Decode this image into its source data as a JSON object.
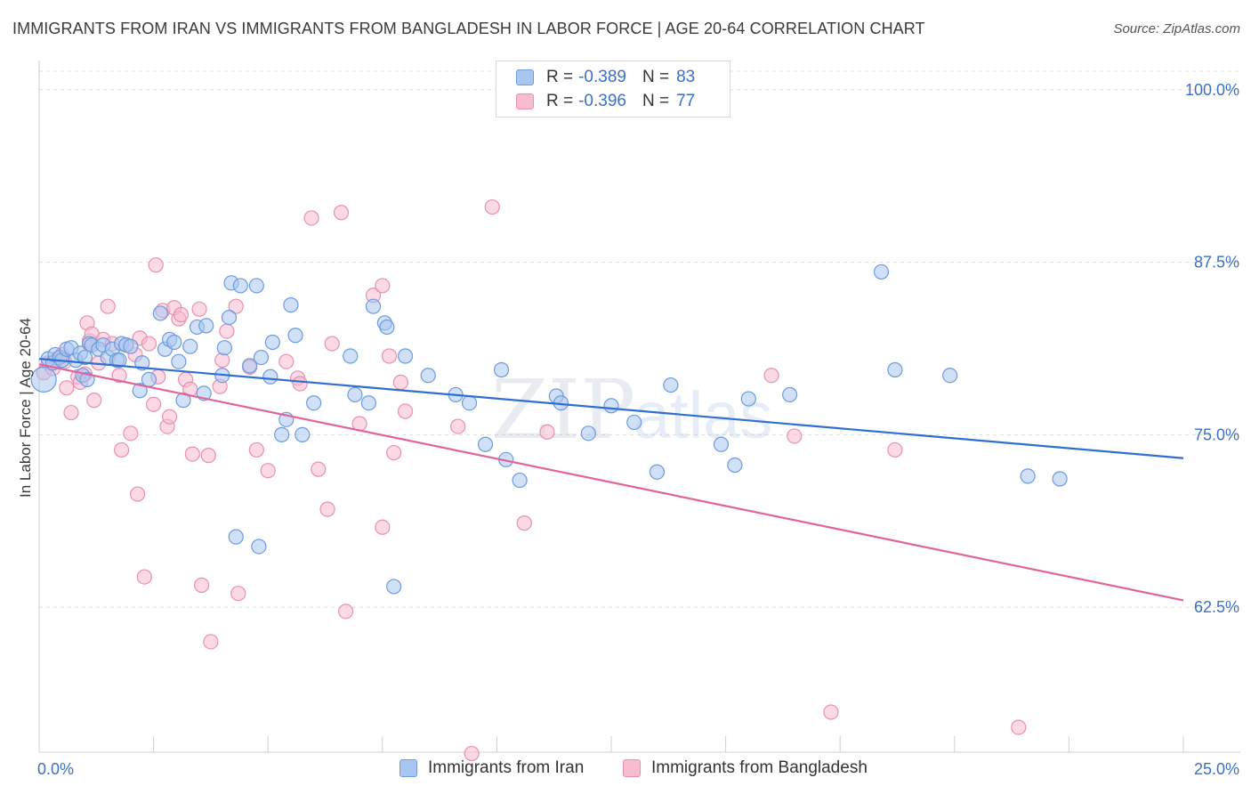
{
  "header": {
    "title": "IMMIGRANTS FROM IRAN VS IMMIGRANTS FROM BANGLADESH IN LABOR FORCE | AGE 20-64 CORRELATION CHART",
    "source": "Source: ZipAtlas.com"
  },
  "watermark": {
    "part1": "ZIP",
    "part2": "atlas"
  },
  "legend": {
    "iran": {
      "r_label": "R =",
      "r_value": "-0.389",
      "n_label": "N =",
      "n_value": "83"
    },
    "bangladesh": {
      "r_label": "R =",
      "r_value": "-0.396",
      "n_label": "N =",
      "n_value": "77"
    }
  },
  "bottom_legend": {
    "iran": "Immigrants from Iran",
    "bangladesh": "Immigrants from Bangladesh"
  },
  "colors": {
    "iran_fill": "#a9c6f0",
    "iran_stroke": "#6c9be0",
    "iran_line": "#2f6fd0",
    "bang_fill": "#f7bcd0",
    "bang_stroke": "#ea8fae",
    "bang_line": "#e0649a",
    "tick_color": "#3b6fc8",
    "grid": "#dddddd"
  },
  "chart_data": {
    "type": "scatter",
    "title": "IMMIGRANTS FROM IRAN VS IMMIGRANTS FROM BANGLADESH IN LABOR FORCE | AGE 20-64 CORRELATION CHART",
    "xlabel": "",
    "ylabel": "In Labor Force | Age 20-64",
    "xlim": [
      0,
      25
    ],
    "ylim": [
      52,
      102.5
    ],
    "x_tick_labels": [
      "0.0%",
      "25.0%"
    ],
    "y_ticks": [
      100,
      87.5,
      75,
      62.5
    ],
    "y_tick_labels": [
      "100.0%",
      "87.5%",
      "75.0%",
      "62.5%"
    ],
    "grid": true,
    "legend_placement": "top-center",
    "series": [
      {
        "name": "Immigrants from Iran",
        "trend": {
          "x": [
            0,
            25
          ],
          "y": [
            80.5,
            73.3
          ]
        },
        "points": [
          [
            0.1,
            79.0
          ],
          [
            0.2,
            80.5
          ],
          [
            0.3,
            80.2
          ],
          [
            0.35,
            80.8
          ],
          [
            0.45,
            80.6
          ],
          [
            0.5,
            80.4
          ],
          [
            0.6,
            81.2
          ],
          [
            0.7,
            81.3
          ],
          [
            0.8,
            80.4
          ],
          [
            0.9,
            80.9
          ],
          [
            0.95,
            79.3
          ],
          [
            1.0,
            80.6
          ],
          [
            1.05,
            79.0
          ],
          [
            1.1,
            81.6
          ],
          [
            1.15,
            81.5
          ],
          [
            1.3,
            81.2
          ],
          [
            1.4,
            81.5
          ],
          [
            1.5,
            80.6
          ],
          [
            1.6,
            81.2
          ],
          [
            1.7,
            80.4
          ],
          [
            1.75,
            80.4
          ],
          [
            1.8,
            81.6
          ],
          [
            1.9,
            81.5
          ],
          [
            2.0,
            81.4
          ],
          [
            2.2,
            78.2
          ],
          [
            2.25,
            80.2
          ],
          [
            2.4,
            79.0
          ],
          [
            2.65,
            83.8
          ],
          [
            2.75,
            81.2
          ],
          [
            2.85,
            81.9
          ],
          [
            2.95,
            81.7
          ],
          [
            3.05,
            80.3
          ],
          [
            3.15,
            77.5
          ],
          [
            3.3,
            81.4
          ],
          [
            3.45,
            82.8
          ],
          [
            3.6,
            78.0
          ],
          [
            3.65,
            82.9
          ],
          [
            4.0,
            79.3
          ],
          [
            4.05,
            81.3
          ],
          [
            4.15,
            83.5
          ],
          [
            4.2,
            86.0
          ],
          [
            4.4,
            85.8
          ],
          [
            4.3,
            67.6
          ],
          [
            4.6,
            80.0
          ],
          [
            4.75,
            85.8
          ],
          [
            4.85,
            80.6
          ],
          [
            4.8,
            66.9
          ],
          [
            5.05,
            79.2
          ],
          [
            5.1,
            81.7
          ],
          [
            5.3,
            75.0
          ],
          [
            5.5,
            84.4
          ],
          [
            5.4,
            76.1
          ],
          [
            5.6,
            82.2
          ],
          [
            5.75,
            75.0
          ],
          [
            6.0,
            77.3
          ],
          [
            6.8,
            80.7
          ],
          [
            6.9,
            77.9
          ],
          [
            7.2,
            77.3
          ],
          [
            7.3,
            84.3
          ],
          [
            7.55,
            83.1
          ],
          [
            7.6,
            82.8
          ],
          [
            7.75,
            64.0
          ],
          [
            8.0,
            80.7
          ],
          [
            8.5,
            79.3
          ],
          [
            9.1,
            77.9
          ],
          [
            9.4,
            77.3
          ],
          [
            9.75,
            74.3
          ],
          [
            10.1,
            79.7
          ],
          [
            10.2,
            73.2
          ],
          [
            10.5,
            71.7
          ],
          [
            11.3,
            77.8
          ],
          [
            11.4,
            77.3
          ],
          [
            12.0,
            75.1
          ],
          [
            12.5,
            77.1
          ],
          [
            13.0,
            75.9
          ],
          [
            13.5,
            72.3
          ],
          [
            13.8,
            78.6
          ],
          [
            14.9,
            74.3
          ],
          [
            15.2,
            72.8
          ],
          [
            15.5,
            77.6
          ],
          [
            16.4,
            77.9
          ],
          [
            18.4,
            86.8
          ],
          [
            18.7,
            79.7
          ],
          [
            19.9,
            79.3
          ],
          [
            21.6,
            72.0
          ],
          [
            22.3,
            71.8
          ]
        ]
      },
      {
        "name": "Immigrants from Bangladesh",
        "trend": {
          "x": [
            0,
            25
          ],
          "y": [
            80.1,
            63.0
          ]
        },
        "points": [
          [
            0.1,
            79.5
          ],
          [
            0.2,
            80.2
          ],
          [
            0.3,
            79.8
          ],
          [
            0.4,
            80.5
          ],
          [
            0.5,
            80.8
          ],
          [
            0.55,
            80.3
          ],
          [
            0.6,
            78.4
          ],
          [
            0.7,
            76.6
          ],
          [
            0.85,
            79.2
          ],
          [
            0.9,
            78.8
          ],
          [
            1.0,
            79.4
          ],
          [
            1.05,
            83.1
          ],
          [
            1.1,
            81.8
          ],
          [
            1.15,
            82.3
          ],
          [
            1.2,
            77.5
          ],
          [
            1.3,
            80.2
          ],
          [
            1.4,
            81.9
          ],
          [
            1.5,
            84.3
          ],
          [
            1.6,
            81.6
          ],
          [
            1.75,
            79.3
          ],
          [
            1.8,
            73.9
          ],
          [
            1.9,
            81.5
          ],
          [
            2.0,
            75.1
          ],
          [
            2.1,
            80.8
          ],
          [
            2.15,
            70.7
          ],
          [
            2.2,
            82.0
          ],
          [
            2.3,
            64.7
          ],
          [
            2.4,
            81.6
          ],
          [
            2.5,
            77.2
          ],
          [
            2.55,
            87.3
          ],
          [
            2.6,
            79.2
          ],
          [
            2.7,
            84.0
          ],
          [
            2.8,
            75.6
          ],
          [
            2.85,
            76.3
          ],
          [
            2.95,
            84.2
          ],
          [
            3.05,
            83.4
          ],
          [
            3.1,
            83.7
          ],
          [
            3.2,
            79.0
          ],
          [
            3.3,
            78.3
          ],
          [
            3.35,
            73.6
          ],
          [
            3.5,
            84.1
          ],
          [
            3.55,
            64.1
          ],
          [
            3.7,
            73.5
          ],
          [
            3.75,
            60.0
          ],
          [
            3.95,
            78.5
          ],
          [
            4.0,
            80.4
          ],
          [
            4.1,
            82.5
          ],
          [
            4.3,
            84.3
          ],
          [
            4.35,
            63.5
          ],
          [
            4.6,
            79.9
          ],
          [
            4.75,
            73.9
          ],
          [
            5.0,
            72.4
          ],
          [
            5.4,
            80.3
          ],
          [
            5.65,
            79.1
          ],
          [
            5.7,
            78.7
          ],
          [
            5.95,
            90.7
          ],
          [
            6.1,
            72.5
          ],
          [
            6.3,
            69.6
          ],
          [
            6.4,
            81.6
          ],
          [
            6.6,
            91.1
          ],
          [
            6.7,
            62.2
          ],
          [
            7.0,
            75.8
          ],
          [
            7.3,
            85.1
          ],
          [
            7.5,
            68.3
          ],
          [
            7.5,
            85.8
          ],
          [
            7.65,
            80.7
          ],
          [
            7.75,
            73.7
          ],
          [
            7.9,
            78.8
          ],
          [
            8.0,
            76.7
          ],
          [
            9.15,
            75.6
          ],
          [
            9.45,
            51.9
          ],
          [
            9.9,
            91.5
          ],
          [
            10.6,
            68.6
          ],
          [
            11.1,
            75.2
          ],
          [
            16.0,
            79.3
          ],
          [
            16.5,
            74.9
          ],
          [
            17.3,
            54.9
          ],
          [
            18.7,
            73.9
          ],
          [
            21.4,
            53.8
          ]
        ]
      }
    ]
  }
}
